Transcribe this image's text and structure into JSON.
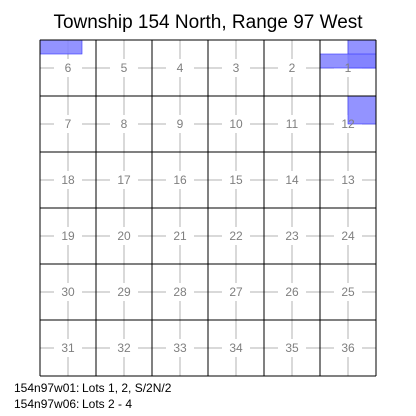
{
  "title": "Township 154 North, Range 97 West",
  "township": "154 North",
  "range": "97 West",
  "colors": {
    "highlight_fill": "#8080ff",
    "highlight_stroke": "#3333ff",
    "section_line": "#000000",
    "quarter_line": "#b3b3b3",
    "label": "#7f7f7f"
  },
  "sections": [
    [
      6,
      5,
      4,
      3,
      2,
      1
    ],
    [
      7,
      8,
      9,
      10,
      11,
      12
    ],
    [
      18,
      17,
      16,
      15,
      14,
      13
    ],
    [
      19,
      20,
      21,
      22,
      23,
      24
    ],
    [
      30,
      29,
      28,
      27,
      26,
      25
    ],
    [
      31,
      32,
      33,
      34,
      35,
      36
    ]
  ],
  "highlights": [
    {
      "section": 6,
      "description": "Lots 2 - 4"
    },
    {
      "section": 1,
      "description": "Lots 1, 2, S/2N/2"
    },
    {
      "section": 12,
      "description": "NE quarter"
    }
  ],
  "legend": [
    {
      "key": "154n97w01:",
      "text": "Lots 1, 2, S/2N/2"
    },
    {
      "key": "154n97w06:",
      "text": "Lots 2 - 4"
    }
  ]
}
